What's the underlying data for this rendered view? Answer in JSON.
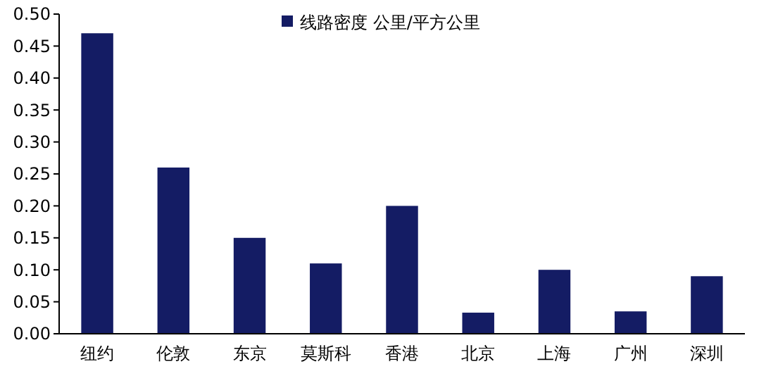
{
  "chart_data": {
    "type": "bar",
    "categories": [
      "纽约",
      "伦敦",
      "东京",
      "莫斯科",
      "香港",
      "北京",
      "上海",
      "广州",
      "深圳"
    ],
    "series": [
      {
        "name": "线路密度 公里/平方公里",
        "color": "#141c64",
        "values": [
          0.47,
          0.26,
          0.15,
          0.11,
          0.2,
          0.033,
          0.1,
          0.035,
          0.09
        ]
      }
    ],
    "ylim": [
      0,
      0.5
    ],
    "yticks": [
      {
        "value": 0,
        "label": "0.00"
      },
      {
        "value": 0.05,
        "label": "0.05"
      },
      {
        "value": 0.1,
        "label": "0.10"
      },
      {
        "value": 0.15,
        "label": "0.15"
      },
      {
        "value": 0.2,
        "label": "0.20"
      },
      {
        "value": 0.25,
        "label": "0.25"
      },
      {
        "value": 0.3,
        "label": "0.30"
      },
      {
        "value": 0.35,
        "label": "0.35"
      },
      {
        "value": 0.4,
        "label": "0.40"
      },
      {
        "value": 0.45,
        "label": "0.45"
      },
      {
        "value": 0.5,
        "label": "0.50"
      }
    ],
    "grid": false,
    "legend": "top"
  }
}
